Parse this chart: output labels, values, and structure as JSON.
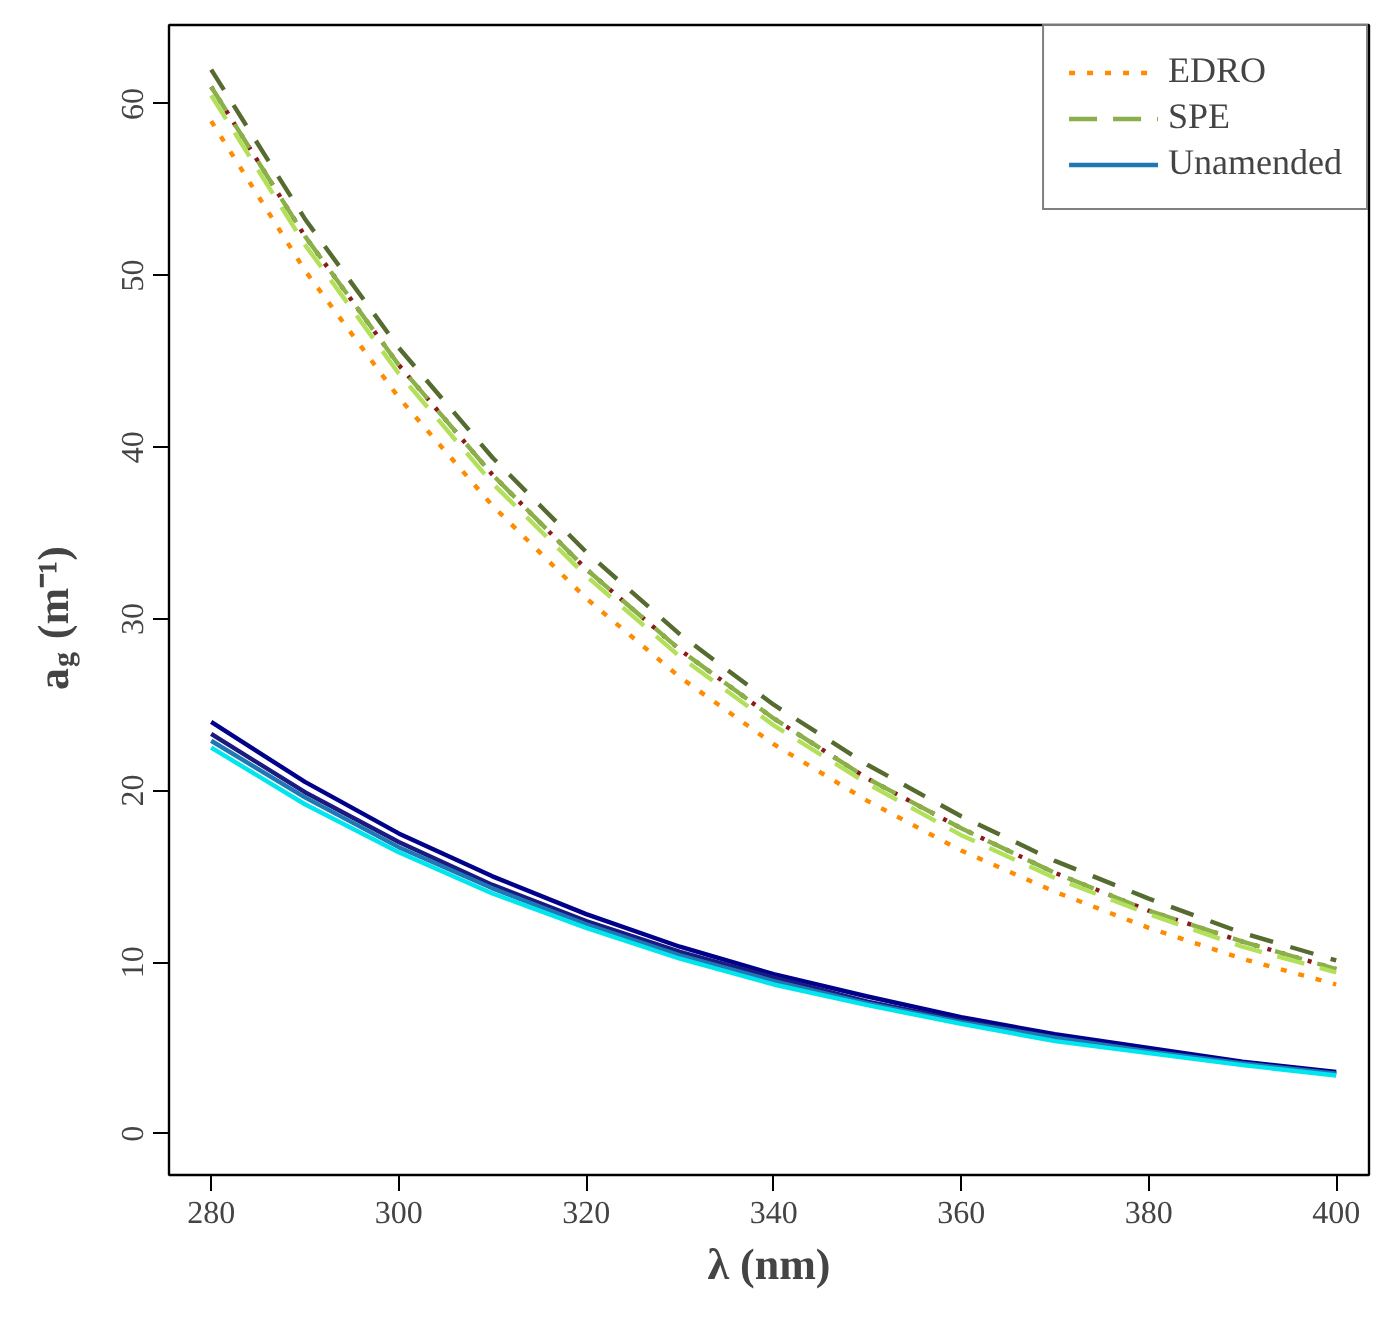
{
  "chart_data": {
    "type": "line",
    "xlabel": "λ (nm)",
    "ylabel": "a$_{g}$ (m⁻¹)",
    "x": [
      280,
      290,
      300,
      310,
      320,
      330,
      340,
      350,
      360,
      370,
      380,
      390,
      400
    ],
    "xlim": [
      275.5,
      403.5
    ],
    "xticks": [
      280,
      300,
      320,
      340,
      360,
      380,
      400
    ],
    "ylim": [
      -2.4,
      64.6
    ],
    "yticks": [
      0,
      10,
      20,
      30,
      40,
      50,
      60
    ],
    "grid": false,
    "legend": "top right",
    "marker": "none",
    "series": [
      {
        "name": "EDRO",
        "color": "#ff8c00",
        "line_style": "dotted",
        "values": [
          59,
          50.3,
          42.9,
          36.6,
          31.2,
          26.6,
          22.7,
          19.4,
          16.5,
          14.1,
          12.0,
          10.2,
          8.7
        ]
      },
      {
        "color": "#8b1a1a",
        "line_style": "dotted",
        "values": [
          61,
          52.3,
          44.8,
          38.4,
          32.9,
          28.2,
          24.2,
          20.7,
          17.8,
          15.2,
          13.0,
          11.2,
          9.6
        ]
      },
      {
        "color": "#556b2f",
        "line_style": "dashed",
        "values": [
          62,
          53.3,
          45.8,
          39.4,
          33.9,
          29.1,
          25.0,
          21.5,
          18.5,
          15.9,
          13.7,
          11.7,
          10.1
        ]
      },
      {
        "name": "SPE",
        "color": "#8ab04a",
        "line_style": "dashed",
        "values": [
          61,
          52.3,
          44.8,
          38.4,
          32.9,
          28.2,
          24.2,
          20.7,
          17.8,
          15.2,
          13.0,
          11.2,
          9.6
        ]
      },
      {
        "color": "#b3e05a",
        "line_style": "dashed",
        "values": [
          60.5,
          51.8,
          44.3,
          37.9,
          32.5,
          27.8,
          23.8,
          20.4,
          17.4,
          14.9,
          12.8,
          10.9,
          9.4
        ]
      },
      {
        "color": "#00008b",
        "line_style": "solid",
        "values": [
          24,
          20.5,
          17.5,
          15.0,
          12.8,
          10.9,
          9.3,
          8.0,
          6.8,
          5.8,
          5.0,
          4.2,
          3.6
        ]
      },
      {
        "color": "#1a1a80",
        "line_style": "solid",
        "values": [
          23.3,
          19.9,
          17.0,
          14.5,
          12.4,
          10.6,
          9.1,
          7.7,
          6.6,
          5.6,
          4.8,
          4.1,
          3.5
        ]
      },
      {
        "name": "Unamended",
        "color": "#1f78b4",
        "line_style": "solid",
        "values": [
          22.9,
          19.6,
          16.7,
          14.3,
          12.2,
          10.4,
          8.9,
          7.6,
          6.5,
          5.6,
          4.8,
          4.1,
          3.5
        ]
      },
      {
        "color": "#00e5ee",
        "line_style": "solid",
        "values": [
          22.5,
          19.2,
          16.4,
          14.0,
          12.0,
          10.2,
          8.7,
          7.5,
          6.4,
          5.4,
          4.7,
          4.0,
          3.4
        ]
      }
    ]
  }
}
